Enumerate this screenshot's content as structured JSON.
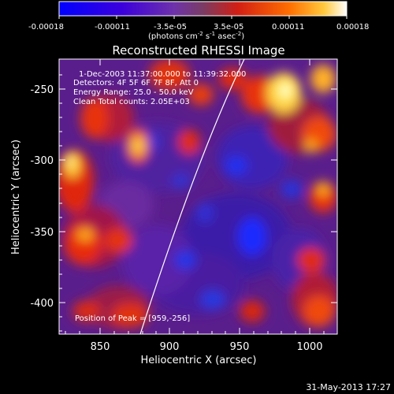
{
  "colorbar": {
    "tick_labels": [
      "-0.00018",
      "-0.00011",
      "-3.5e-05",
      "3.5e-05",
      "0.00011",
      "0.00018"
    ],
    "units_prefix": "(photons cm",
    "units_exp1": "-2",
    "units_mid": " s",
    "units_exp2": "-1",
    "units_asec": " asec",
    "units_exp3": "-2",
    "units_suffix": ")"
  },
  "plot": {
    "title": "Reconstructed RHESSI Image",
    "xlabel": "Heliocentric X (arcsec)",
    "ylabel": "Heliocentric Y (arcsec)",
    "xticks": [
      "850",
      "900",
      "950",
      "1000"
    ],
    "yticks": [
      "-250",
      "-300",
      "-350",
      "-400"
    ],
    "annotation": {
      "line1": "1-Dec-2003 11:37:00.000 to 11:39:32.000",
      "line2": "Detectors: 4F 5F 6F 7F 8F, Att 0",
      "line3": "Energy Range: 25.0 - 50.0 keV",
      "line4": "Clean     Total counts: 2.05E+03"
    },
    "peak_label": "Position of Peak = [959,-256]"
  },
  "footer": {
    "timestamp": "31-May-2013 17:27"
  }
}
